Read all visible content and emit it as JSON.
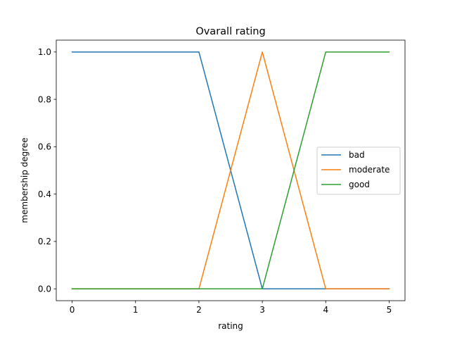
{
  "chart_data": {
    "type": "line",
    "title": "Ovarall rating",
    "xlabel": "rating",
    "ylabel": "membership degree",
    "xlim": [
      -0.25,
      5.25
    ],
    "ylim": [
      -0.05,
      1.05
    ],
    "xticks": [
      0,
      1,
      2,
      3,
      4,
      5
    ],
    "xtick_labels": [
      "0",
      "1",
      "2",
      "3",
      "4",
      "5"
    ],
    "yticks": [
      0.0,
      0.2,
      0.4,
      0.6,
      0.8,
      1.0
    ],
    "ytick_labels": [
      "0.0",
      "0.2",
      "0.4",
      "0.6",
      "0.8",
      "1.0"
    ],
    "grid": false,
    "legend_position": "center-right",
    "series": [
      {
        "name": "bad",
        "color": "#1f77b4",
        "x": [
          0,
          2,
          3,
          4,
          5
        ],
        "y": [
          1,
          1,
          0,
          0,
          0
        ]
      },
      {
        "name": "moderate",
        "color": "#ff7f0e",
        "x": [
          0,
          2,
          3,
          4,
          5
        ],
        "y": [
          0,
          0,
          1,
          0,
          0
        ]
      },
      {
        "name": "good",
        "color": "#2ca02c",
        "x": [
          0,
          2,
          3,
          4,
          5
        ],
        "y": [
          0,
          0,
          0,
          1,
          1
        ]
      }
    ]
  }
}
